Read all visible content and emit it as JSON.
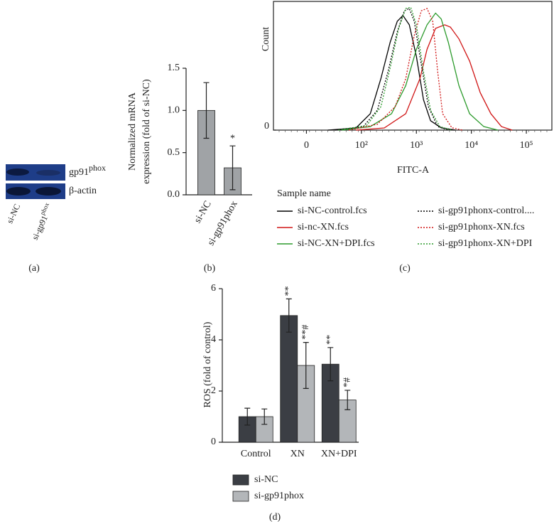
{
  "blot": {
    "panel_label": "(a)",
    "bands": [
      {
        "text": "gp91",
        "sup": "phox"
      },
      {
        "text": "β-actin"
      }
    ],
    "lanes": [
      {
        "text": "si-NC"
      },
      {
        "text": "si-gp91",
        "sup": "phox"
      }
    ]
  },
  "chart_data": [
    {
      "type": "bar",
      "panel_label": "(b)",
      "ylabel": [
        "Normalized mRNA",
        "expression (fold of si-NC)"
      ],
      "categories": [
        "si-NC",
        "si-gp91phox"
      ],
      "values": [
        1.0,
        0.32
      ],
      "errors": [
        0.33,
        0.26
      ],
      "annotations": [
        null,
        "*"
      ],
      "color": "#a0a3a6",
      "ylim": [
        0,
        1.5
      ],
      "yticks": [
        {
          "value": 0,
          "label": "0.0"
        },
        0.5,
        {
          "value": 1,
          "label": "1.0"
        },
        1.5
      ]
    },
    {
      "type": "line",
      "panel_label": "(c)",
      "xlabel": "FITC-A",
      "ylabel": "Count",
      "xscale": "biexponential",
      "xlim": [
        -60,
        300000
      ],
      "xticks": [
        0,
        {
          "value": 100,
          "label": "10²"
        },
        {
          "value": 1000,
          "label": "10³"
        },
        {
          "value": 10000,
          "label": "10⁴"
        },
        {
          "value": 100000,
          "label": "10⁵"
        }
      ],
      "ylim": [
        0,
        110
      ],
      "yticks": [
        0
      ],
      "legend_title": "Sample name",
      "series": [
        {
          "name": "si-NC-control.fcs",
          "color": "#000000",
          "dash": "solid",
          "x": [
            39,
            90,
            145,
            226,
            333,
            449,
            569,
            743,
            1000,
            1346,
            1811,
            2831,
            5124
          ],
          "values": [
            0,
            1.8,
            14,
            44,
            75,
            93,
            98,
            90,
            63,
            26,
            8,
            2,
            0
          ]
        },
        {
          "name": "si-nc-XN.fcs",
          "color": "#d01515",
          "dash": "solid",
          "x": [
            90,
            260,
            640,
            1160,
            1560,
            2230,
            3280,
            4160,
            5940,
            9290,
            14500,
            22650,
            35300,
            55200
          ],
          "values": [
            0,
            1.8,
            14,
            44,
            69,
            87,
            90,
            88,
            78,
            59,
            32,
            14,
            3,
            0
          ]
        },
        {
          "name": "si-NC-XN+DPI.fcs",
          "color": "#2b9a2b",
          "dash": "solid",
          "x": [
            65,
            145,
            353,
            640,
            1000,
            1562,
            2231,
            2830,
            3810,
            5940,
            9290,
            16830,
            30470
          ],
          "values": [
            0,
            3,
            14,
            38,
            69,
            90,
            100,
            95,
            75,
            38,
            14,
            3,
            0
          ]
        },
        {
          "name": "si-gp91phonx-control....",
          "color": "#000000",
          "dash": "dotted",
          "x": [
            52,
            108,
            195,
            305,
            449,
            604,
            743,
            915,
            1231,
            1656,
            2439,
            3810
          ],
          "values": [
            0,
            3,
            17,
            50,
            84,
            102,
            104,
            93,
            56,
            20,
            3,
            0
          ]
        },
        {
          "name": "si-gp91phonx-XN.fcs",
          "color": "#d01515",
          "dash": "dotted",
          "x": [
            77,
            195,
            410,
            640,
            915,
            1231,
            1562,
            1982,
            2439,
            3000,
            4420,
            6900
          ],
          "values": [
            0,
            5,
            20,
            44,
            81,
            102,
            104,
            93,
            50,
            14,
            2,
            0
          ]
        },
        {
          "name": "si-gp91phonx-XN+DPI",
          "color": "#2b9a2b",
          "dash": "dotted",
          "x": [
            58,
            125,
            226,
            333,
            476,
            640,
            789,
            1000,
            1346,
            1811,
            2667,
            4420
          ],
          "values": [
            0,
            4,
            20,
            53,
            87,
            104,
            105,
            90,
            50,
            17,
            3,
            0
          ]
        }
      ]
    },
    {
      "type": "bar",
      "panel_label": "(d)",
      "ylabel": "ROS (fold of control)",
      "categories": [
        "Control",
        "XN",
        "XN+DPI"
      ],
      "series": [
        {
          "name": "si-NC",
          "color": "#3b3e44",
          "values": [
            1.0,
            4.95,
            3.05
          ],
          "errors": [
            0.33,
            0.65,
            0.65
          ],
          "annotations": [
            null,
            "**",
            "**"
          ]
        },
        {
          "name": "si-gp91phox",
          "color": "#b3b6b9",
          "values": [
            1.0,
            3.0,
            1.65
          ],
          "errors": [
            0.3,
            0.9,
            0.38
          ],
          "annotations": [
            null,
            "**#",
            "*#"
          ]
        }
      ],
      "ylim": [
        0,
        6
      ],
      "yticks": [
        0,
        2,
        4,
        6
      ]
    }
  ]
}
